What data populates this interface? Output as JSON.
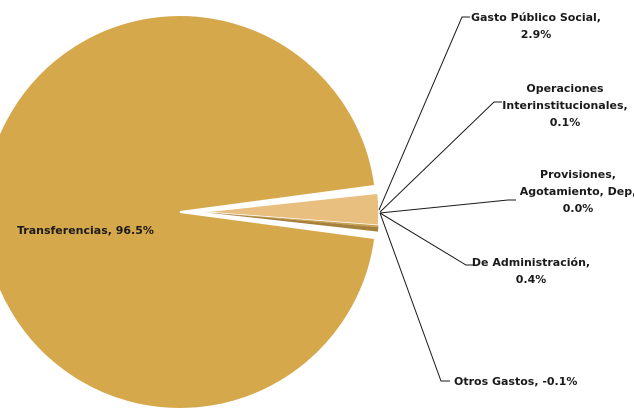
{
  "chart_data": {
    "type": "pie",
    "title": "",
    "slices": [
      {
        "label": "Transferencias, 96.5%",
        "value": 96.5,
        "color": "#D6A84C"
      },
      {
        "label": "Gasto Público Social, 2.9%",
        "value": 2.9,
        "color": "#E8BF7E"
      },
      {
        "label": "Operaciones Interinstitucionales, 0.1%",
        "value": 0.1,
        "color": "#C9A152"
      },
      {
        "label": "Provisiones, Agotamiento, Dep, 0.0%",
        "value": 0.0,
        "color": "#B8914A"
      },
      {
        "label": "De Administración, 0.4%",
        "value": 0.4,
        "color": "#A5813D"
      },
      {
        "label": "Otros Gastos, -0.1%",
        "value": -0.1,
        "color": "#8F7031"
      }
    ],
    "labels": {
      "transferencias": "Transferencias, 96.5%",
      "gasto_l1": "Gasto Público Social,",
      "gasto_l2": "2.9%",
      "oper_l1": "Operaciones",
      "oper_l2": "Interinstitucionales,",
      "oper_l3": "0.1%",
      "prov_l1": "Provisiones,",
      "prov_l2": "Agotamiento,  Dep,",
      "prov_l3": "0.0%",
      "admin_l1": "De Administración,",
      "admin_l2": "0.4%",
      "otros_l1": "Otros Gastos, -0.1%"
    },
    "legend": "none"
  }
}
